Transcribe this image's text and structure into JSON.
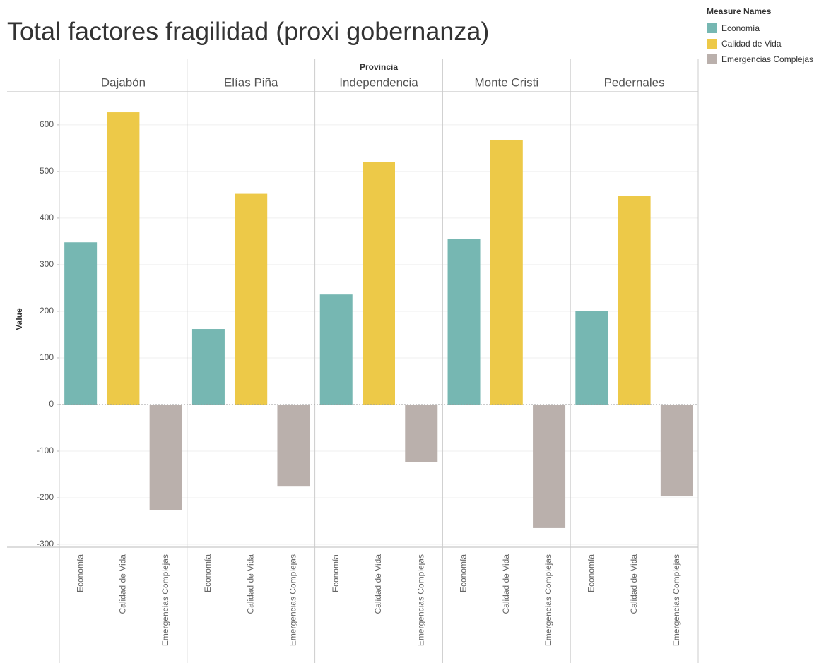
{
  "chart_data": {
    "type": "bar",
    "title": "Total factores fragilidad (proxi gobernanza)",
    "facet_label": "Provincia",
    "facets": [
      "Dajabón",
      "Elías Piña",
      "Independencia",
      "Monte Cristi",
      "Pedernales"
    ],
    "ylabel": "Value",
    "legend_title": "Measure Names",
    "legend_position": "top-right",
    "series": [
      {
        "name": "Economía",
        "color": "#76b7b2",
        "values": [
          348,
          162,
          236,
          355,
          200
        ]
      },
      {
        "name": "Calidad de Vida",
        "color": "#edc948",
        "values": [
          627,
          452,
          520,
          568,
          448
        ]
      },
      {
        "name": "Emergencias Complejas",
        "color": "#bab0ac",
        "values": [
          -226,
          -176,
          -124,
          -265,
          -197
        ]
      }
    ],
    "ylim": [
      -306,
      671
    ],
    "yticks": [
      -300,
      -200,
      -100,
      0,
      100,
      200,
      300,
      400,
      500,
      600
    ],
    "grid": true
  }
}
